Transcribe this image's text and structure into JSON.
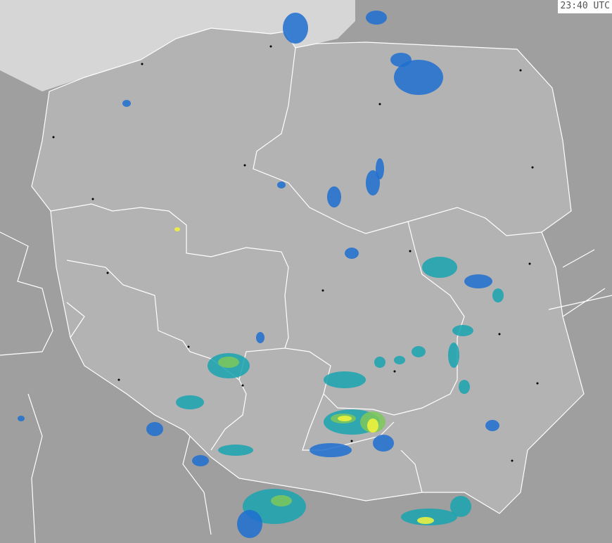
{
  "timestamp": "23:40 UTC",
  "colors": {
    "sea": "#d6d6d6",
    "country": "#b3b3b3",
    "neighbors": "#9f9f9f",
    "border": "#ffffff",
    "city": "#000000",
    "radar_low": "#1e6fd0",
    "radar_mid": "#19a3b0",
    "radar_high": "#7ec85a",
    "radar_peak": "#f4f43a"
  }
}
